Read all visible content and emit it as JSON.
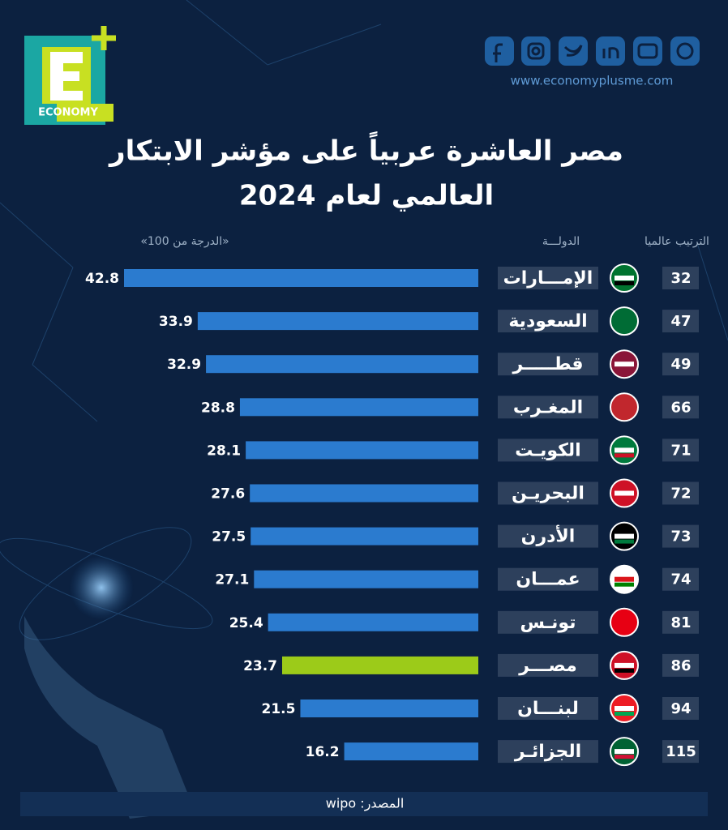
{
  "brand": {
    "logo": "ECONOMY",
    "website": "www.economyplusme.com"
  },
  "chart_data": {
    "type": "bar",
    "title": [
      "مصر العاشرة عربياً على مؤشر الابتكار",
      "العالمي لعام 2024"
    ],
    "headers": {
      "rank": "الترتيب عالميا",
      "country": "الدولـــة",
      "score": "«الدرجة من 100»"
    },
    "categories": [
      "الإمـــارات",
      "السعودية",
      "قطـــــر",
      "المغـرب",
      "الكويـت",
      "البحريـن",
      "الأدرن",
      "عمـــان",
      "تونـس",
      "مصـــر",
      "لبنـــان",
      "الجزائـر"
    ],
    "ranks": [
      32,
      47,
      49,
      66,
      71,
      72,
      73,
      74,
      81,
      86,
      94,
      115
    ],
    "values": [
      42.8,
      33.9,
      32.9,
      28.8,
      28.1,
      27.6,
      27.5,
      27.1,
      25.4,
      23.7,
      21.5,
      16.2
    ],
    "colors": [
      "#2b7bcf",
      "#2b7bcf",
      "#2b7bcf",
      "#2b7bcf",
      "#2b7bcf",
      "#2b7bcf",
      "#2b7bcf",
      "#2b7bcf",
      "#2b7bcf",
      "#9ccb19",
      "#2b7bcf",
      "#2b7bcf"
    ],
    "source": "المصدر: wipo"
  }
}
